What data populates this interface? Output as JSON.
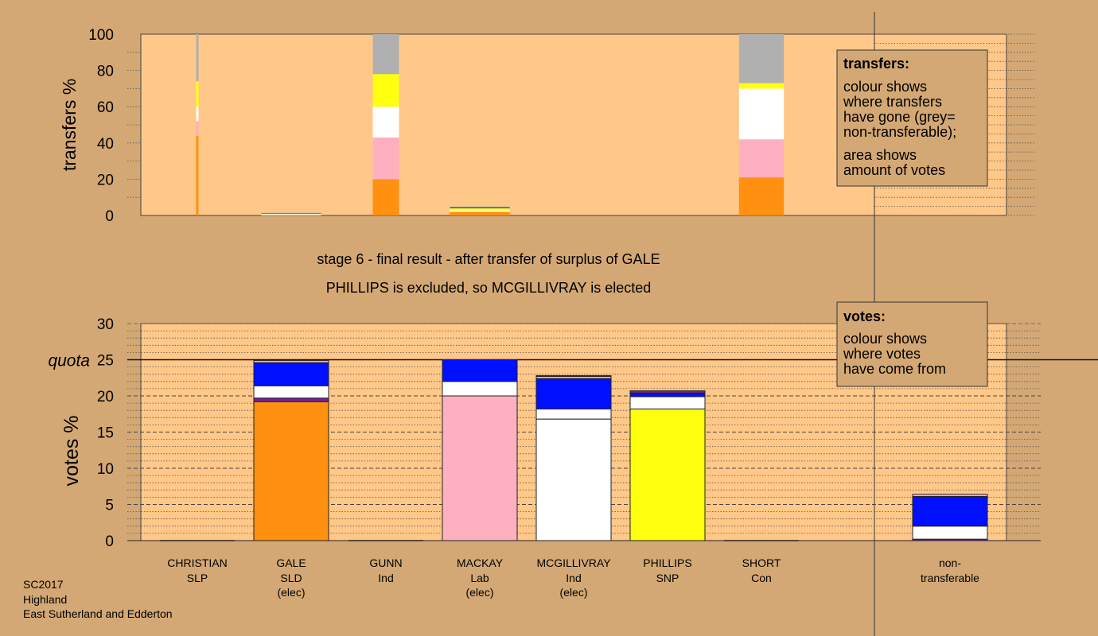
{
  "chart_data": {
    "type": "bar",
    "stage_line1": "stage 6 - final result - after transfer of surplus of GALE",
    "stage_line2": "PHILLIPS is excluded, so MCGILLIVRAY is elected",
    "footer": [
      "SC2017",
      "Highland",
      "East Sutherland and Edderton"
    ],
    "colors": {
      "CHRISTIAN": "#7a1fa2",
      "GALE": "#ff9010",
      "GUNN": "#10b0a0",
      "MACKAY": "#ffb0c0",
      "MCGILLIVRAY": "#ffffff",
      "PHILLIPS": "#ffff10",
      "SHORT": "#0010ff",
      "nontransferable": "#b0b0b0",
      "background": "#d4a874",
      "panel": "#ffc888"
    },
    "candidates": [
      {
        "name": "CHRISTIAN",
        "party": "SLP",
        "status": ""
      },
      {
        "name": "GALE",
        "party": "SLD",
        "status": "(elec)"
      },
      {
        "name": "GUNN",
        "party": "Ind",
        "status": ""
      },
      {
        "name": "MACKAY",
        "party": "Lab",
        "status": "(elec)"
      },
      {
        "name": "MCGILLIVRAY",
        "party": "Ind",
        "status": "(elec)"
      },
      {
        "name": "PHILLIPS",
        "party": "SNP",
        "status": ""
      },
      {
        "name": "SHORT",
        "party": "Con",
        "status": ""
      }
    ],
    "nontransferable_label": [
      "non-",
      "transferable"
    ],
    "transfers": {
      "ylabel": "transfers %",
      "ylim": [
        0,
        100
      ],
      "ticks": [
        0,
        20,
        40,
        60,
        80,
        100
      ],
      "legend_title": "transfers:",
      "legend_lines": [
        "colour shows",
        "where transfers",
        "have gone (grey=",
        "non-transferable);",
        "area shows",
        "amount of votes"
      ],
      "series": [
        {
          "candidate": "CHRISTIAN",
          "share": 0.02,
          "segments": [
            {
              "to": "GALE",
              "value": 44
            },
            {
              "to": "MACKAY",
              "value": 8
            },
            {
              "to": "MCGILLIVRAY",
              "value": 8
            },
            {
              "to": "PHILLIPS",
              "value": 14
            },
            {
              "to": "nontransferable",
              "value": 26
            }
          ]
        },
        {
          "candidate": "GALE",
          "share": 0.8,
          "total": 1.5,
          "segments": [
            {
              "to": "MACKAY",
              "value": 0.3
            },
            {
              "to": "MCGILLIVRAY",
              "value": 0.5
            },
            {
              "to": "PHILLIPS",
              "value": 0.4
            },
            {
              "to": "SHORT",
              "value": 0.1
            },
            {
              "to": "nontransferable",
              "value": 0.2
            }
          ]
        },
        {
          "candidate": "GUNN",
          "share": 0.35,
          "segments": [
            {
              "to": "GALE",
              "value": 20
            },
            {
              "to": "MACKAY",
              "value": 23
            },
            {
              "to": "MCGILLIVRAY",
              "value": 17
            },
            {
              "to": "PHILLIPS",
              "value": 18
            },
            {
              "to": "nontransferable",
              "value": 22
            }
          ]
        },
        {
          "candidate": "MACKAY",
          "share": 0.8,
          "total": 5,
          "segments": [
            {
              "to": "GALE",
              "value": 2
            },
            {
              "to": "MCGILLIVRAY",
              "value": 0.8
            },
            {
              "to": "PHILLIPS",
              "value": 1.2
            },
            {
              "to": "SHORT",
              "value": 0.4
            },
            {
              "to": "nontransferable",
              "value": 0.6
            }
          ]
        },
        {
          "candidate": "SHORT",
          "share": 0.6,
          "segments": [
            {
              "to": "GALE",
              "value": 21
            },
            {
              "to": "MACKAY",
              "value": 21
            },
            {
              "to": "MCGILLIVRAY",
              "value": 28
            },
            {
              "to": "PHILLIPS",
              "value": 3
            },
            {
              "to": "nontransferable",
              "value": 27
            }
          ]
        }
      ]
    },
    "votes": {
      "ylabel": "votes %",
      "ylim": [
        0,
        30
      ],
      "ticks": [
        0,
        5,
        10,
        15,
        20,
        25,
        30
      ],
      "quota": 25,
      "quota_label": "quota",
      "legend_title": "votes:",
      "legend_lines": [
        "colour shows",
        "where votes",
        "have come from"
      ],
      "bars": [
        {
          "candidate": "CHRISTIAN",
          "segments": []
        },
        {
          "candidate": "GALE",
          "segments": [
            {
              "from": "GALE",
              "value": 19.2
            },
            {
              "from": "CHRISTIAN",
              "value": 0.5
            },
            {
              "from": "MCGILLIVRAY",
              "value": 1.7
            },
            {
              "from": "SHORT",
              "value": 3.2
            },
            {
              "from": "MACKAY",
              "value": 0.3
            }
          ]
        },
        {
          "candidate": "GUNN",
          "segments": []
        },
        {
          "candidate": "MACKAY",
          "segments": [
            {
              "from": "MACKAY",
              "value": 20
            },
            {
              "from": "MCGILLIVRAY",
              "value": 2
            },
            {
              "from": "SHORT",
              "value": 3
            }
          ]
        },
        {
          "candidate": "MCGILLIVRAY",
          "segments": [
            {
              "from": "MCGILLIVRAY",
              "value": 16.8
            },
            {
              "from": "MCGILLIVRAY",
              "value": 1.4
            },
            {
              "from": "SHORT",
              "value": 4.2
            },
            {
              "from": "MACKAY",
              "value": 0.3
            },
            {
              "from": "CHRISTIAN",
              "value": 0.1
            }
          ]
        },
        {
          "candidate": "PHILLIPS",
          "segments": [
            {
              "from": "PHILLIPS",
              "value": 18.2
            },
            {
              "from": "MCGILLIVRAY",
              "value": 1.7
            },
            {
              "from": "SHORT",
              "value": 0.5
            },
            {
              "from": "CHRISTIAN",
              "value": 0.3
            }
          ]
        },
        {
          "candidate": "SHORT",
          "segments": []
        },
        {
          "candidate": "nontransferable",
          "segments": [
            {
              "from": "CHRISTIAN",
              "value": 0.2
            },
            {
              "from": "MCGILLIVRAY",
              "value": 1.8
            },
            {
              "from": "SHORT",
              "value": 4.1
            },
            {
              "from": "MACKAY",
              "value": 0.3
            }
          ]
        }
      ]
    }
  }
}
